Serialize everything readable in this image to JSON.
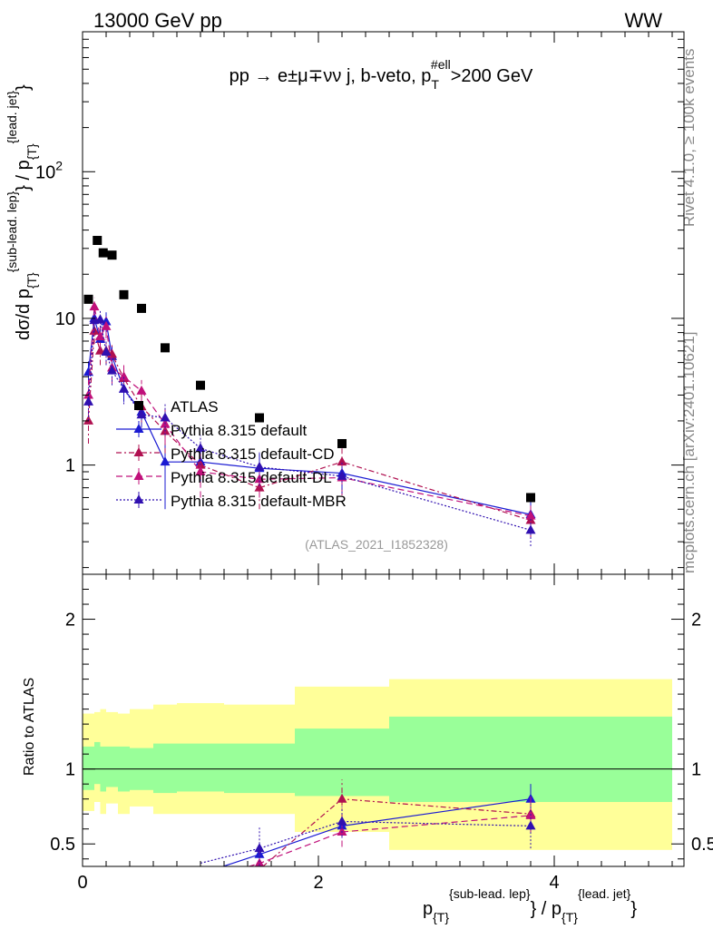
{
  "header": {
    "energy_label": "13000 GeV pp",
    "process_label": "WW"
  },
  "side": {
    "rivet_label": "Rivet 4.1.0, ≥ 100k events",
    "mcplots_label": "mcplots.cern.ch [arXiv:2401.10621]"
  },
  "chart_data": {
    "type": "scatter",
    "title": "pp → e±μ∓νν j, b-veto, pT#ell>200 GeV",
    "title_parts": {
      "main": "pp  →  e±μ∓νν j, b-veto, p",
      "sup": "#ell",
      "sub": "T",
      "tail": ">200 GeV"
    },
    "analysis_label": "(ATLAS_2021_I1852328)",
    "xlabel": "p{T}{sub-lead. lep} / p{T}{lead. jet}",
    "xlabel_parts": {
      "p1": "p",
      "sub1": "{T}",
      "sup1": "{sub-lead. lep}",
      "mid": "} / p",
      "sub2": "{T}",
      "sup2": "{lead. jet}",
      "end": "}"
    },
    "ylabel": "dσ/d p{T}{sub-lead. lep}} / p{T}{lead. jet}}",
    "ylabel_parts": {
      "a": "dσ/d p",
      "sub1": "{T}",
      "sup1": "{sub-lead. lep}",
      "mid": "} / p",
      "sub2": "{T}",
      "sup2": "{lead. jet}",
      "end": "}"
    },
    "ratio_ylabel": "Ratio to ATLAS",
    "xlim": [
      0,
      5.1
    ],
    "ylim": [
      0.18,
      900
    ],
    "ylog": true,
    "ratio_ylim": [
      0.35,
      2.3
    ],
    "x_ticks": [
      {
        "value": 0,
        "label": "0"
      },
      {
        "value": 2,
        "label": "2"
      },
      {
        "value": 4,
        "label": "4"
      }
    ],
    "y_ticks": [
      {
        "value": 1,
        "label": "1"
      },
      {
        "value": 10,
        "label": "10"
      },
      {
        "value": 100,
        "label": "10",
        "exp": "2"
      }
    ],
    "ratio_ticks": [
      {
        "value": 0.5,
        "label": "0.5"
      },
      {
        "value": 1,
        "label": "1"
      },
      {
        "value": 2,
        "label": "2"
      }
    ],
    "data": {
      "name": "ATLAS",
      "x": [
        0.05,
        0.125,
        0.175,
        0.25,
        0.35,
        0.5,
        0.7,
        1.0,
        1.5,
        2.2,
        3.8
      ],
      "y": [
        13.5,
        34,
        28,
        27,
        14.5,
        11.7,
        6.3,
        3.5,
        2.1,
        1.4,
        0.6
      ]
    },
    "bands": [
      {
        "x0": 0.0,
        "x1": 0.1,
        "green": [
          0.86,
          1.15
        ],
        "yellow": [
          0.72,
          1.37
        ]
      },
      {
        "x0": 0.1,
        "x1": 0.15,
        "green": [
          0.9,
          1.18
        ],
        "yellow": [
          0.78,
          1.38
        ]
      },
      {
        "x0": 0.15,
        "x1": 0.2,
        "green": [
          0.85,
          1.15
        ],
        "yellow": [
          0.7,
          1.4
        ]
      },
      {
        "x0": 0.2,
        "x1": 0.3,
        "green": [
          0.88,
          1.15
        ],
        "yellow": [
          0.77,
          1.38
        ]
      },
      {
        "x0": 0.3,
        "x1": 0.4,
        "green": [
          0.85,
          1.15
        ],
        "yellow": [
          0.7,
          1.37
        ]
      },
      {
        "x0": 0.4,
        "x1": 0.6,
        "green": [
          0.86,
          1.14
        ],
        "yellow": [
          0.75,
          1.4
        ]
      },
      {
        "x0": 0.6,
        "x1": 0.8,
        "green": [
          0.84,
          1.17
        ],
        "yellow": [
          0.7,
          1.43
        ]
      },
      {
        "x0": 0.8,
        "x1": 1.2,
        "green": [
          0.85,
          1.17
        ],
        "yellow": [
          0.7,
          1.44
        ]
      },
      {
        "x0": 1.2,
        "x1": 1.8,
        "green": [
          0.84,
          1.17
        ],
        "yellow": [
          0.7,
          1.43
        ]
      },
      {
        "x0": 1.8,
        "x1": 2.6,
        "green": [
          0.82,
          1.27
        ],
        "yellow": [
          0.58,
          1.55
        ]
      },
      {
        "x0": 2.6,
        "x1": 5.0,
        "green": [
          0.78,
          1.35
        ],
        "yellow": [
          0.46,
          1.6
        ]
      }
    ],
    "series": [
      {
        "name": "Pythia 8.315 default",
        "color": "#1a1ad2",
        "dash": "",
        "x": [
          0.05,
          0.1,
          0.15,
          0.2,
          0.25,
          0.35,
          0.5,
          0.7,
          1.0,
          1.5,
          2.2,
          3.8
        ],
        "y": [
          4.3,
          10.0,
          7.2,
          9.5,
          5.5,
          3.3,
          2.3,
          1.05,
          1.05,
          0.95,
          0.88,
          0.46
        ],
        "err": [
          0.8,
          1.6,
          1.3,
          1.5,
          1.0,
          0.6,
          0.5,
          0.55,
          0.3,
          0.25,
          0.2,
          0.1
        ],
        "ratio_x": [
          1.5,
          2.2,
          3.8
        ],
        "ratio": [
          0.43,
          0.62,
          0.8
        ],
        "ratio_err": [
          0.07,
          0.08,
          0.1
        ]
      },
      {
        "name": "Pythia 8.315 default-CD",
        "color": "#b01050",
        "dash": "6,3,2,3",
        "x": [
          0.05,
          0.1,
          0.15,
          0.2,
          0.25,
          0.35,
          0.5,
          0.7,
          1.0,
          1.5,
          2.2,
          3.8
        ],
        "y": [
          2.0,
          8.2,
          6.0,
          6.0,
          5.7,
          3.9,
          2.5,
          1.7,
          1.0,
          0.7,
          1.05,
          0.42
        ],
        "err": [
          0.6,
          1.5,
          1.2,
          1.2,
          1.1,
          0.8,
          0.6,
          0.5,
          0.3,
          0.2,
          0.25,
          0.1
        ],
        "ratio_x": [
          1.5,
          2.2,
          3.8
        ],
        "ratio": [
          0.33,
          0.8,
          0.7
        ],
        "ratio_err": [
          0.08,
          0.13,
          0.12
        ]
      },
      {
        "name": "Pythia 8.315 default-DL",
        "color": "#c0107a",
        "dash": "7,4",
        "x": [
          0.05,
          0.1,
          0.15,
          0.2,
          0.25,
          0.35,
          0.5,
          0.7,
          1.0,
          1.5,
          2.2,
          3.8
        ],
        "y": [
          3.0,
          12.0,
          7.5,
          8.8,
          4.6,
          4.0,
          3.2,
          1.9,
          0.9,
          0.8,
          0.82,
          0.45
        ],
        "err": [
          0.8,
          1.9,
          1.4,
          1.5,
          1.0,
          0.8,
          0.6,
          0.5,
          0.3,
          0.2,
          0.2,
          0.1
        ],
        "ratio_x": [
          1.5,
          2.2,
          3.8
        ],
        "ratio": [
          0.37,
          0.58,
          0.69
        ],
        "ratio_err": [
          0.08,
          0.1,
          0.12
        ]
      },
      {
        "name": "Pythia 8.315 default-MBR",
        "color": "#3010b0",
        "dash": "2,2",
        "x": [
          0.05,
          0.1,
          0.15,
          0.2,
          0.25,
          0.35,
          0.5,
          0.7,
          1.0,
          1.5,
          2.2,
          3.8
        ],
        "y": [
          2.7,
          9.7,
          9.8,
          5.9,
          4.4,
          3.3,
          2.2,
          2.1,
          1.3,
          0.97,
          0.84,
          0.36
        ],
        "err": [
          0.7,
          1.6,
          1.6,
          1.1,
          0.9,
          0.7,
          0.5,
          0.5,
          0.3,
          0.25,
          0.2,
          0.08
        ],
        "ratio_x": [
          1.5,
          2.2,
          3.8
        ],
        "ratio": [
          0.47,
          0.65,
          0.62
        ],
        "ratio_err": [
          0.14,
          0.1,
          0.15
        ]
      }
    ]
  }
}
